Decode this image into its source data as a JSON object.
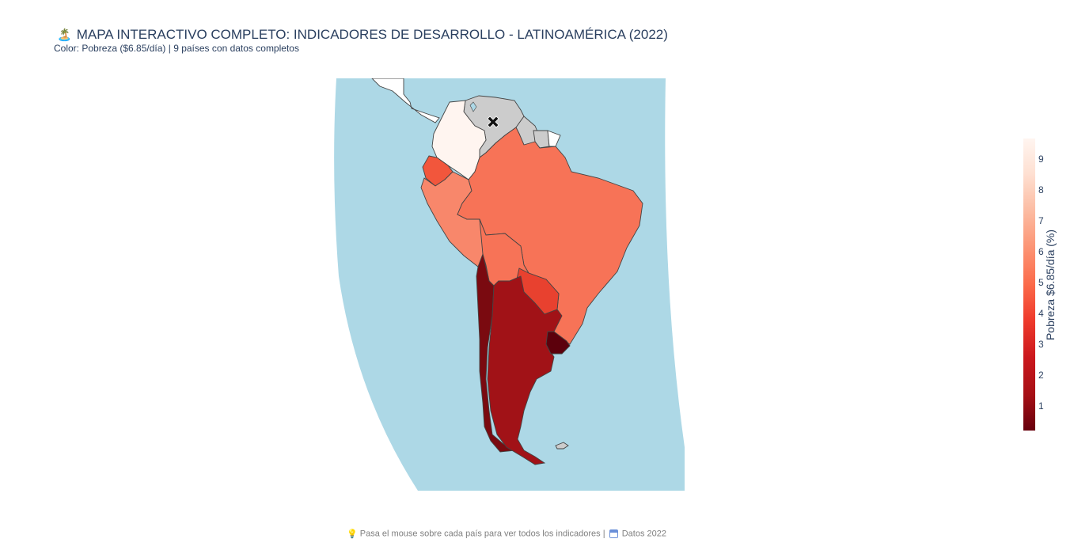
{
  "header": {
    "title_icon": "🏝️",
    "title": "MAPA INTERACTIVO COMPLETO: INDICADORES DE DESARROLLO - LATINOAMÉRICA (2022)",
    "subtitle": "Color: Pobreza ($6.85/día) | 9 países con datos completos"
  },
  "map": {
    "projection": "orthographic-like curved view of South America",
    "ocean_color": "#add8e6",
    "land_no_data_color": "#cccccc",
    "marker_icon": "x-marker-icon",
    "countries": [
      {
        "name": "Colombia",
        "color": "#fff5f0"
      },
      {
        "name": "Venezuela",
        "color": "#cccccc"
      },
      {
        "name": "Guyana",
        "color": "#cccccc"
      },
      {
        "name": "Suriname",
        "color": "#cccccc"
      },
      {
        "name": "French Guiana",
        "color": "#ffffff"
      },
      {
        "name": "Ecuador",
        "color": "#f2563c"
      },
      {
        "name": "Peru",
        "color": "#f8876b"
      },
      {
        "name": "Brazil",
        "color": "#f77357"
      },
      {
        "name": "Bolivia",
        "color": "#f77357"
      },
      {
        "name": "Paraguay",
        "color": "#e8412f"
      },
      {
        "name": "Chile",
        "color": "#7a0a10"
      },
      {
        "name": "Argentina",
        "color": "#a11217"
      },
      {
        "name": "Uruguay",
        "color": "#5c000c"
      }
    ]
  },
  "colorbar": {
    "title": "Pobreza $6.85/día (%)",
    "ticks": [
      "9",
      "8",
      "7",
      "6",
      "5",
      "4",
      "3",
      "2",
      "1"
    ]
  },
  "footer": {
    "bulb_icon": "💡",
    "text_left": "Pasa el mouse sobre cada país para ver todos los indicadores |",
    "calendar_icon": "calendar-icon",
    "text_right": "Datos 2022"
  }
}
